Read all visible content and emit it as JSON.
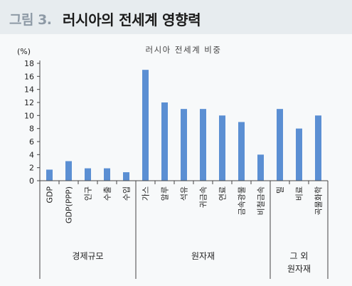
{
  "figure": {
    "label": "그림 3.",
    "title": "러시아의 전세계 영향력"
  },
  "chart_data": {
    "type": "bar",
    "title": "러시아 전세계 비중",
    "unit": "(%)",
    "ylim": [
      0,
      18
    ],
    "yticks": [
      "0",
      "2",
      "4",
      "6",
      "8",
      "10",
      "12",
      "14",
      "16",
      "18"
    ],
    "categories": [
      "GDP",
      "GDP(PPP)",
      "인구",
      "수출",
      "수입",
      "가스",
      "알루",
      "석유",
      "귀금속",
      "연료",
      "금속광물",
      "비철금속",
      "밀",
      "비료",
      "곡물화학"
    ],
    "values": [
      1.7,
      3.0,
      1.9,
      1.9,
      1.3,
      17.0,
      12.0,
      11.0,
      11.0,
      10.0,
      9.0,
      4.0,
      11.0,
      8.0,
      10.0
    ],
    "groups": [
      {
        "label_lines": [
          "경제규모"
        ],
        "start": 0,
        "end": 4
      },
      {
        "label_lines": [
          "원자재"
        ],
        "start": 5,
        "end": 11
      },
      {
        "label_lines": [
          "그 외",
          "원자재"
        ],
        "start": 12,
        "end": 14
      }
    ],
    "bar_color": "#5b8fd3",
    "grid": false,
    "legend": "none"
  }
}
